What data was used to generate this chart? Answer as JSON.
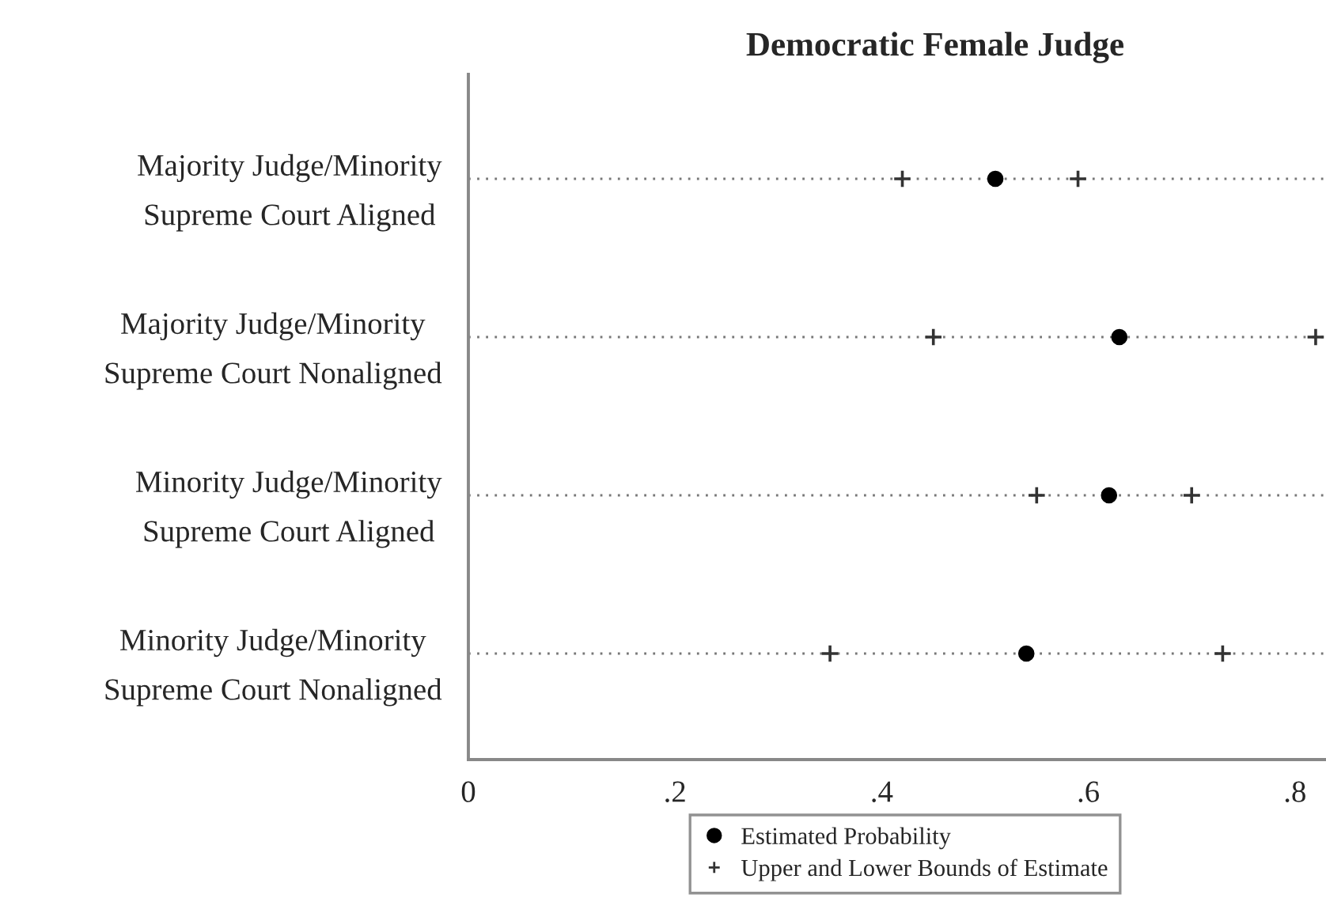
{
  "chart_data": {
    "type": "scatter",
    "orientation": "horizontal",
    "title": "Democratic Female Judge",
    "categories": [
      "Majority Judge/Minority\nSupreme Court Aligned",
      "Majority Judge/Minority\nSupreme Court Nonaligned",
      "Minority Judge/Minority\nSupreme Court Aligned",
      "Minority Judge/Minority\nSupreme Court Nonaligned"
    ],
    "series": [
      {
        "name": "Estimated Probability",
        "color": "#000000",
        "marker": "circle",
        "values": [
          0.51,
          0.63,
          0.62,
          0.54
        ]
      },
      {
        "name": "Upper and Lower Bounds of Estimate",
        "color": "#333333",
        "marker": "cross",
        "values": [
          0.42,
          0.45,
          0.55,
          0.35
        ]
      },
      {
        "color": "#333333",
        "marker": "cross",
        "values": [
          0.59,
          0.82,
          0.7,
          0.73
        ]
      }
    ],
    "xlim": [
      0,
      0.83
    ],
    "xticks": [
      0,
      {
        "value": 0.2,
        "label": ".2"
      },
      {
        "value": 0.4,
        "label": ".4"
      },
      {
        "value": 0.6,
        "label": ".6"
      },
      {
        "value": 0.8,
        "label": ".8"
      }
    ],
    "grid": "y",
    "legend": "bottom"
  }
}
